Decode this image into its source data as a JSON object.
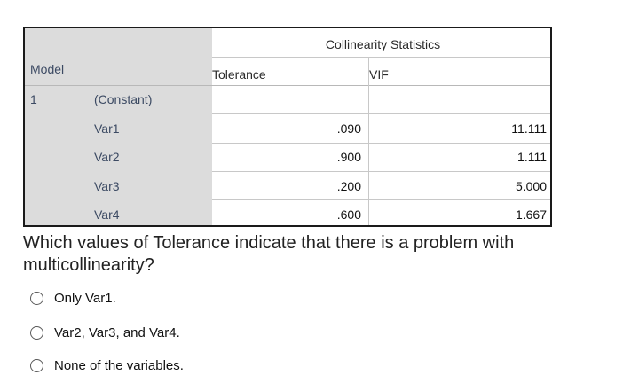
{
  "table": {
    "group_header": "Collinearity Statistics",
    "model_header": "Model",
    "col_tolerance": "Tolerance",
    "col_vif": "VIF",
    "model_number": "1",
    "rows": [
      {
        "label": "(Constant)",
        "tolerance": "",
        "vif": ""
      },
      {
        "label": "Var1",
        "tolerance": ".090",
        "vif": "11.111"
      },
      {
        "label": "Var2",
        "tolerance": ".900",
        "vif": "1.111"
      },
      {
        "label": "Var3",
        "tolerance": ".200",
        "vif": "5.000"
      },
      {
        "label": "Var4",
        "tolerance": ".600",
        "vif": "1.667"
      }
    ]
  },
  "question": {
    "text": "Which values of Tolerance indicate that there is a problem with multicollinearity?",
    "options": [
      {
        "label": "Only Var1."
      },
      {
        "label": "Var2, Var3, and Var4."
      },
      {
        "label": "None of the variables."
      }
    ]
  }
}
